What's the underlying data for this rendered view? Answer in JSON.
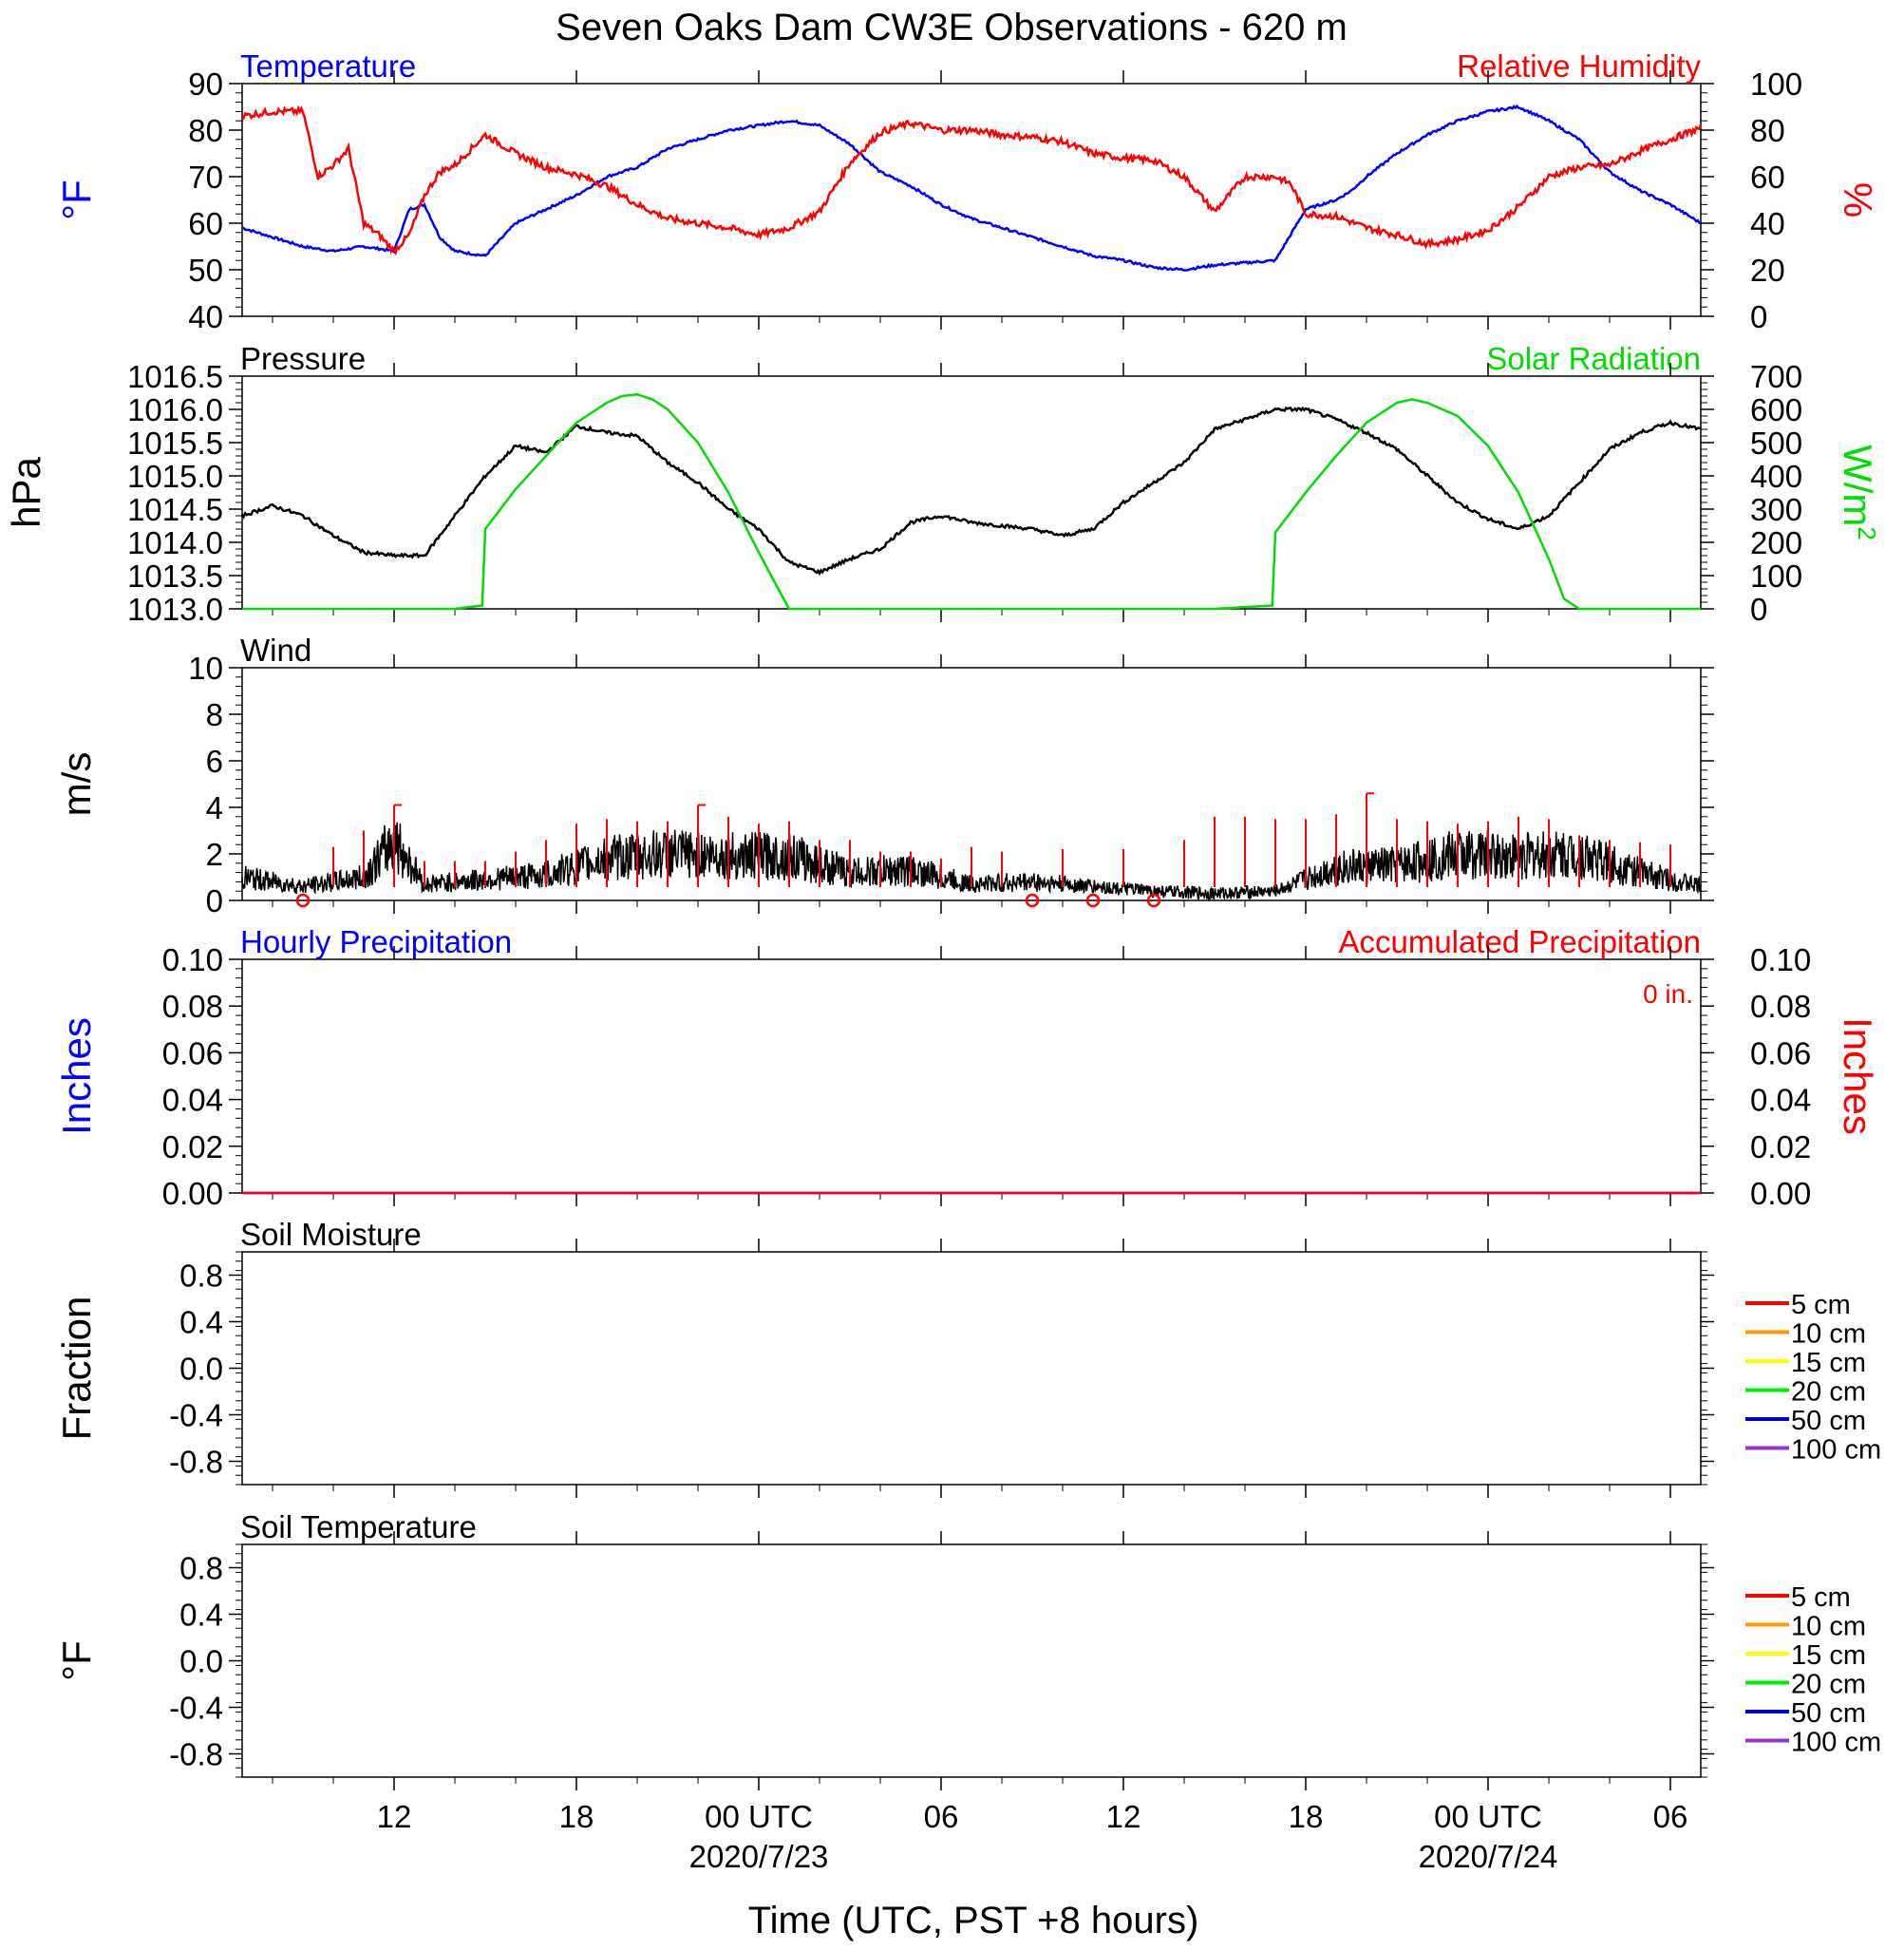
{
  "title": "Seven Oaks Dam CW3E Observations - 620 m",
  "xlabel": "Time (UTC, PST +8 hours)",
  "colors": {
    "temperature": "#0000ff",
    "humidity": "#ff0000",
    "pressure": "#000000",
    "solar": "#00dd00",
    "wind": "#000000",
    "barb": "#ff0000",
    "hourly_precip": "#0000ff",
    "accum_precip": "#ff0000",
    "soil_5": "#ff0000",
    "soil_10": "#ff9900",
    "soil_15": "#ffff00",
    "soil_20": "#00ee00",
    "soil_50": "#0000cc",
    "soil_100": "#9933cc"
  },
  "chart_data": [
    {
      "panel": "temperature-humidity",
      "type": "line",
      "title_left": "Temperature",
      "title_right": "Relative Humidity",
      "ylabel_left": "°F",
      "ylabel_right": "%",
      "ylim_left": [
        40,
        90
      ],
      "ylim_right": [
        0,
        100
      ],
      "yticks_left": [
        "40",
        "50",
        "60",
        "70",
        "80",
        "90"
      ],
      "yticks_right": [
        "0",
        "20",
        "40",
        "60",
        "80",
        "100"
      ],
      "xlim_hours": [
        -5,
        43
      ],
      "series": [
        {
          "name": "Temperature",
          "axis": "left",
          "x_hours": [
            -5,
            -4,
            -3,
            -2,
            -1,
            0,
            0.5,
            1,
            1.5,
            2,
            3,
            4,
            5,
            6,
            7,
            8,
            9,
            10,
            11,
            12,
            13,
            14,
            15,
            16,
            17,
            18,
            19,
            20,
            21,
            22,
            23,
            24,
            25,
            26,
            27,
            28,
            29,
            30,
            31,
            31.5,
            32,
            33,
            34,
            35,
            36,
            37,
            38,
            39,
            40,
            41,
            42,
            43
          ],
          "y": [
            59,
            57,
            55,
            54,
            55,
            54,
            63,
            64,
            57,
            54,
            53,
            60,
            63,
            66,
            70,
            72,
            76,
            78,
            80,
            81,
            82,
            81,
            77,
            71,
            68,
            64,
            61,
            59,
            57,
            55,
            53,
            52,
            50.5,
            50,
            51,
            51.5,
            52,
            63,
            65,
            67,
            70,
            75,
            79,
            82,
            84,
            85,
            82,
            78,
            71,
            67,
            64,
            60
          ]
        },
        {
          "name": "Relative Humidity",
          "axis": "right",
          "x_hours": [
            -5,
            -4,
            -3,
            -2.5,
            -2,
            -1.5,
            -1,
            -0.5,
            0,
            0.5,
            1,
            1.5,
            2,
            3,
            4,
            5,
            6,
            7,
            8,
            9,
            10,
            11,
            12,
            13,
            14,
            15,
            16,
            17,
            18,
            19,
            20,
            21,
            22,
            23,
            24,
            25,
            26,
            27,
            28,
            29,
            29.5,
            30,
            31,
            32,
            33,
            34,
            35,
            36,
            37,
            38,
            39,
            40,
            41,
            42,
            43
          ],
          "y": [
            86,
            88,
            88,
            60,
            65,
            72,
            40,
            35,
            28,
            35,
            52,
            62,
            65,
            78,
            70,
            64,
            61,
            56,
            48,
            42,
            40,
            38,
            35,
            38,
            45,
            66,
            79,
            83,
            80,
            80,
            78,
            77,
            75,
            70,
            68,
            67,
            60,
            45,
            60,
            60,
            57,
            44,
            43,
            38,
            35,
            31,
            33,
            37,
            47,
            60,
            64,
            65,
            71,
            76,
            81
          ]
        }
      ]
    },
    {
      "panel": "pressure-solar",
      "type": "line",
      "title_left": "Pressure",
      "title_right": "Solar Radiation",
      "ylabel_left": "hPa",
      "ylabel_right": "W/m",
      "ylabel_right_sup": "2",
      "ylim_left": [
        1013.0,
        1016.5
      ],
      "ylim_right": [
        0,
        700
      ],
      "yticks_left": [
        "1013.0",
        "1013.5",
        "1014.0",
        "1014.5",
        "1015.0",
        "1015.5",
        "1016.0",
        "1016.5"
      ],
      "yticks_right": [
        "0",
        "100",
        "200",
        "300",
        "400",
        "500",
        "600",
        "700"
      ],
      "series": [
        {
          "name": "Pressure",
          "axis": "left",
          "x_hours": [
            -5,
            -4,
            -3,
            -2,
            -1,
            0,
            1,
            2,
            3,
            4,
            5,
            6,
            7,
            8,
            9,
            10,
            11,
            12,
            13,
            14,
            15,
            16,
            17,
            18,
            19,
            20,
            21,
            22,
            23,
            24,
            25,
            26,
            27,
            28,
            29,
            30,
            31,
            32,
            33,
            34,
            35,
            36,
            37,
            38,
            39,
            40,
            41,
            42,
            43
          ],
          "y": [
            1014.4,
            1014.55,
            1014.4,
            1014.1,
            1013.85,
            1013.8,
            1013.8,
            1014.4,
            1015.0,
            1015.45,
            1015.35,
            1015.75,
            1015.65,
            1015.6,
            1015.2,
            1014.9,
            1014.5,
            1014.2,
            1013.7,
            1013.55,
            1013.75,
            1013.9,
            1014.3,
            1014.4,
            1014.3,
            1014.25,
            1014.2,
            1014.1,
            1014.2,
            1014.6,
            1014.9,
            1015.2,
            1015.7,
            1015.85,
            1016.0,
            1016.0,
            1015.85,
            1015.65,
            1015.4,
            1015.0,
            1014.6,
            1014.35,
            1014.2,
            1014.4,
            1014.9,
            1015.4,
            1015.65,
            1015.8,
            1015.7
          ]
        },
        {
          "name": "Solar Radiation",
          "axis": "right",
          "x_hours": [
            -5,
            2,
            2.9,
            3,
            3.5,
            4,
            5,
            6,
            7,
            7.5,
            8,
            8.5,
            9,
            10,
            11,
            12,
            12.7,
            13,
            14,
            20,
            27,
            28.9,
            29,
            29.5,
            30,
            31,
            32,
            33,
            33.5,
            34,
            35,
            36,
            37,
            38,
            38.5,
            39,
            43
          ],
          "y": [
            0,
            0,
            10,
            240,
            300,
            360,
            460,
            560,
            620,
            640,
            645,
            630,
            600,
            500,
            350,
            170,
            50,
            0,
            0,
            0,
            0,
            10,
            230,
            290,
            350,
            460,
            560,
            620,
            630,
            620,
            580,
            490,
            350,
            150,
            30,
            0,
            0
          ]
        }
      ]
    },
    {
      "panel": "wind",
      "type": "line",
      "title_left": "Wind",
      "ylabel_left": "m/s",
      "ylim_left": [
        0,
        10
      ],
      "yticks_left": [
        "0",
        "2",
        "4",
        "6",
        "8",
        "10"
      ],
      "series": [
        {
          "name": "Wind",
          "axis": "left",
          "x_hours": [
            -5,
            -3,
            -1,
            0,
            1,
            3,
            5,
            7,
            9,
            11,
            13,
            15,
            17,
            19,
            21,
            23,
            25,
            27,
            29,
            31,
            33,
            35,
            37,
            39,
            41,
            43
          ],
          "y": [
            1.0,
            0.6,
            1.0,
            2.6,
            0.7,
            0.9,
            1.1,
            1.8,
            2.0,
            1.9,
            1.9,
            1.2,
            1.3,
            0.7,
            0.8,
            0.6,
            0.4,
            0.3,
            0.4,
            1.4,
            1.5,
            2.0,
            1.9,
            2.0,
            1.2,
            0.6
          ]
        }
      ],
      "barbs": {
        "x_hours": [
          -3,
          -2,
          -1,
          0,
          1,
          2,
          3,
          4,
          5,
          6,
          7,
          8,
          9,
          10,
          11,
          12,
          13,
          14,
          15,
          16,
          17,
          18,
          19,
          20,
          21,
          22,
          23,
          24,
          25,
          26,
          27,
          28,
          29,
          30,
          31,
          32,
          33,
          34,
          35,
          36,
          37,
          38,
          39,
          40,
          41,
          42
        ],
        "speed": [
          0,
          2.3,
          3.0,
          4.1,
          1.7,
          1.7,
          1.7,
          2.1,
          2.6,
          3.3,
          3.5,
          3.4,
          3.4,
          4.1,
          3.6,
          3.3,
          3.4,
          2.6,
          2.6,
          2.1,
          2.1,
          1.8,
          2.3,
          2.1,
          0,
          2.2,
          0,
          2.2,
          0,
          2.6,
          3.6,
          3.6,
          3.5,
          3.5,
          3.7,
          4.6,
          3.5,
          3.4,
          3.3,
          3.4,
          3.6,
          3.5,
          2.8,
          2.6,
          2.5,
          2.4
        ]
      }
    },
    {
      "panel": "precipitation",
      "type": "line",
      "title_left": "Hourly Precipitation",
      "title_right": "Accumulated Precipitation",
      "annotation": "0 in.",
      "ylabel_left": "Inches",
      "ylabel_right": "Inches",
      "ylim_left": [
        0,
        0.1
      ],
      "ylim_right": [
        0,
        0.1
      ],
      "yticks_left": [
        "0.00",
        "0.02",
        "0.04",
        "0.06",
        "0.08",
        "0.10"
      ],
      "yticks_right": [
        "0.00",
        "0.02",
        "0.04",
        "0.06",
        "0.08",
        "0.10"
      ],
      "series": [
        {
          "name": "Hourly Precipitation",
          "axis": "left",
          "x_hours": [
            -5,
            43
          ],
          "y": [
            0,
            0
          ]
        },
        {
          "name": "Accumulated Precipitation",
          "axis": "right",
          "x_hours": [
            -5,
            43
          ],
          "y": [
            0,
            0
          ]
        }
      ]
    },
    {
      "panel": "soil-moisture",
      "type": "line",
      "title_left": "Soil Moisture",
      "ylabel_left": "Fraction",
      "ylim_left": [
        -1,
        1
      ],
      "yticks_left": [
        "-0.8",
        "-0.4",
        "0.0",
        "0.4",
        "0.8"
      ],
      "legend": [
        "5 cm",
        "10 cm",
        "15 cm",
        "20 cm",
        "50 cm",
        "100 cm"
      ],
      "series": []
    },
    {
      "panel": "soil-temperature",
      "type": "line",
      "title_left": "Soil Temperature",
      "ylabel_left": "°F",
      "ylim_left": [
        -1,
        1
      ],
      "yticks_left": [
        "-0.8",
        "-0.4",
        "0.0",
        "0.4",
        "0.8"
      ],
      "legend": [
        "5 cm",
        "10 cm",
        "15 cm",
        "20 cm",
        "50 cm",
        "100 cm"
      ],
      "series": []
    }
  ],
  "x_axis": {
    "tick_hours": [
      0,
      6,
      12,
      18,
      24,
      30,
      36,
      42
    ],
    "tick_labels": [
      "12",
      "18",
      "00 UTC",
      "06",
      "12",
      "18",
      "00 UTC",
      "06"
    ],
    "date_labels": [
      {
        "hour": 12,
        "text": "2020/7/23"
      },
      {
        "hour": 36,
        "text": "2020/7/24"
      }
    ]
  }
}
